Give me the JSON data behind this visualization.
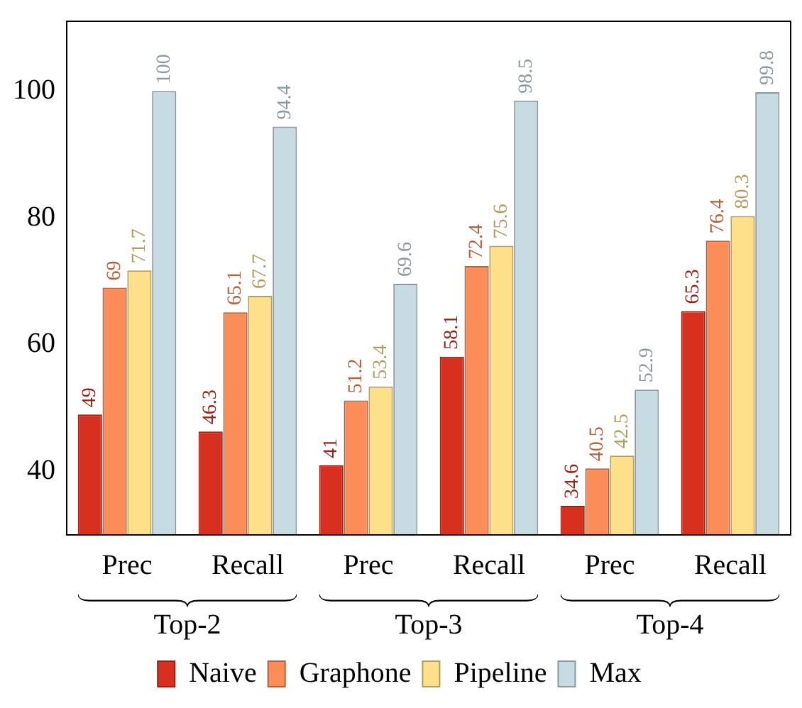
{
  "chart_data": {
    "type": "bar",
    "categories": [
      "Prec",
      "Recall",
      "Prec",
      "Recall",
      "Prec",
      "Recall"
    ],
    "series": [
      {
        "name": "Naive",
        "color": "#d7301f",
        "values": [
          49,
          46.3,
          41,
          58.1,
          34.6,
          65.3
        ]
      },
      {
        "name": "Graphone",
        "color": "#fc8d59",
        "values": [
          69,
          65.1,
          51.2,
          72.4,
          40.5,
          76.4
        ]
      },
      {
        "name": "Pipeline",
        "color": "#fee08b",
        "values": [
          71.7,
          67.7,
          53.4,
          75.6,
          42.5,
          80.3
        ]
      },
      {
        "name": "Max",
        "color": "#c7dbe3",
        "values": [
          100,
          94.4,
          69.6,
          98.5,
          52.9,
          99.8
        ]
      }
    ],
    "annotations": [
      "Top-2",
      "Top-3",
      "Top-4"
    ],
    "ylim": [
      30,
      111
    ],
    "yticks": [
      40,
      60,
      80,
      100
    ],
    "grid": false,
    "legend": "bottom",
    "data_labels": true
  }
}
